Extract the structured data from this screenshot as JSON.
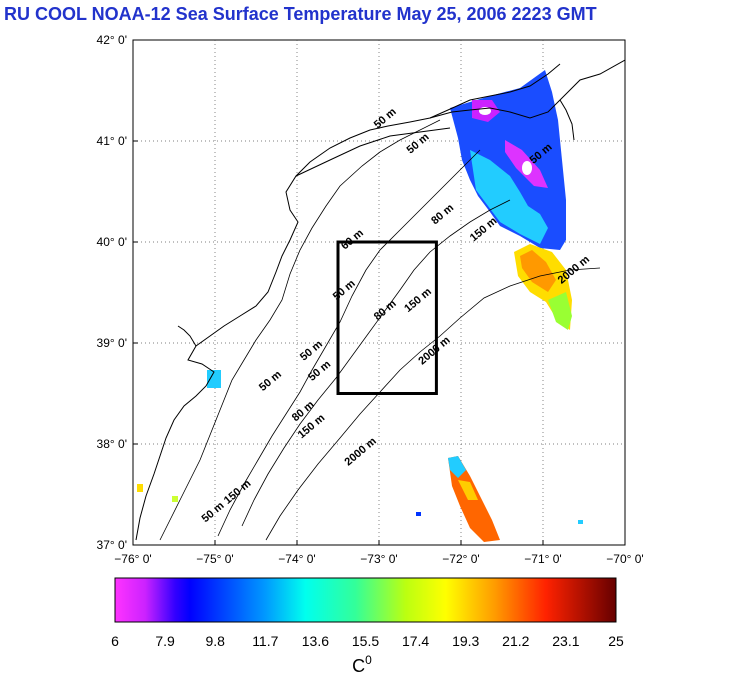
{
  "title": "RU COOL  NOAA-12 Sea Surface Temperature May 25, 2006 2223 GMT",
  "map": {
    "lon_range": [
      -76,
      -70
    ],
    "lat_range": [
      37,
      42
    ],
    "lon_ticks": [
      "−76° 0'",
      "−75° 0'",
      "−74° 0'",
      "−73° 0'",
      "−72° 0'",
      "−71° 0'",
      "−70° 0'"
    ],
    "lat_ticks": [
      "42° 0'",
      "41° 0'",
      "40° 0'",
      "39° 0'",
      "38° 0'",
      "37° 0'"
    ],
    "grid": "dotted",
    "study_box": {
      "lon": [
        -73.5,
        -72.3
      ],
      "lat": [
        38.5,
        40.0
      ]
    },
    "contour_labels": [
      {
        "text": "50 m",
        "lon": -72.9,
        "lat": 41.2
      },
      {
        "text": "50 m",
        "lon": -72.5,
        "lat": 40.95
      },
      {
        "text": "50 m",
        "lon": -71.0,
        "lat": 40.85
      },
      {
        "text": "80 m",
        "lon": -72.2,
        "lat": 40.25
      },
      {
        "text": "60 m",
        "lon": -73.3,
        "lat": 40.0
      },
      {
        "text": "150 m",
        "lon": -71.7,
        "lat": 40.1
      },
      {
        "text": "2000 m",
        "lon": -70.6,
        "lat": 39.7
      },
      {
        "text": "50 m",
        "lon": -73.4,
        "lat": 39.5
      },
      {
        "text": "80 m",
        "lon": -72.9,
        "lat": 39.3
      },
      {
        "text": "150 m",
        "lon": -72.5,
        "lat": 39.4
      },
      {
        "text": "2000 m",
        "lon": -72.3,
        "lat": 38.9
      },
      {
        "text": "50 m",
        "lon": -73.8,
        "lat": 38.9
      },
      {
        "text": "50 m",
        "lon": -73.7,
        "lat": 38.7
      },
      {
        "text": "50 m",
        "lon": -74.3,
        "lat": 38.6
      },
      {
        "text": "80 m",
        "lon": -73.9,
        "lat": 38.3
      },
      {
        "text": "150 m",
        "lon": -73.8,
        "lat": 38.15
      },
      {
        "text": "2000 m",
        "lon": -73.2,
        "lat": 37.9
      },
      {
        "text": "150 m",
        "lon": -74.7,
        "lat": 37.5
      },
      {
        "text": "50 m",
        "lon": -75.0,
        "lat": 37.3
      }
    ]
  },
  "colorbar": {
    "min": 6,
    "max": 25,
    "ticks": [
      "6",
      "7.9",
      "9.8",
      "11.7",
      "13.6",
      "15.5",
      "17.4",
      "19.3",
      "21.2",
      "23.1",
      "25"
    ],
    "unit": "C",
    "unit_superscript": "0",
    "colors": [
      "#ff44ff",
      "#bb22ff",
      "#0000ff",
      "#0066ff",
      "#00ccff",
      "#00ffcc",
      "#66ff66",
      "#ccff00",
      "#ffff00",
      "#ffaa00",
      "#ff5500",
      "#ff0000",
      "#aa0000",
      "#660000"
    ]
  },
  "colors": {
    "title": "#2233cc",
    "study_box": "#000000",
    "coast": "#000000"
  }
}
